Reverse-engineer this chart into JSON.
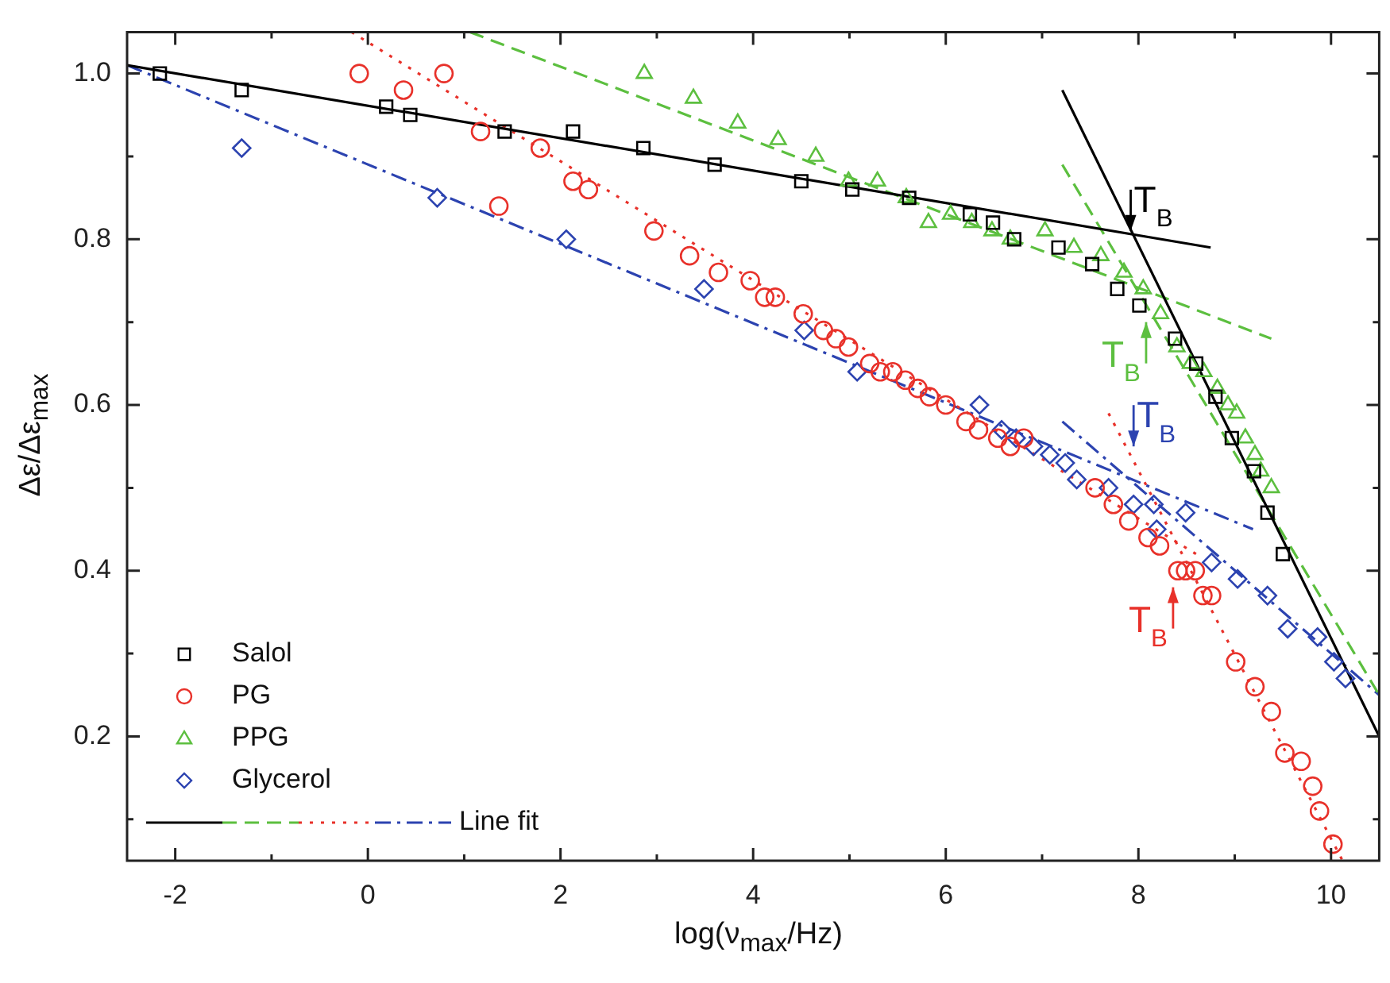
{
  "chart_data": {
    "type": "scatter",
    "xlabel": "log(ν$_{max}$/Hz)",
    "ylabel": "Δε/Δε$_{max}$",
    "xlim": [
      -2.5,
      10.5
    ],
    "ylim": [
      0.05,
      1.05
    ],
    "xticks": [
      -2,
      {
        "value": -1,
        "label": null
      },
      0,
      {
        "value": 1,
        "label": null
      },
      2,
      {
        "value": 3,
        "label": null
      },
      4,
      {
        "value": 5,
        "label": null
      },
      6,
      {
        "value": 7,
        "label": null
      },
      8,
      {
        "value": 9,
        "label": null
      },
      10
    ],
    "yticks": [
      {
        "value": 0.1,
        "label": null
      },
      0.2,
      {
        "value": 0.3,
        "label": null
      },
      0.4,
      {
        "value": 0.5,
        "label": null
      },
      0.6,
      {
        "value": 0.7,
        "label": null
      },
      0.8,
      {
        "value": 0.9,
        "label": null
      },
      {
        "value": 1,
        "label": "1.0"
      }
    ],
    "legend": "bottom left",
    "series": [
      {
        "name": "Salol",
        "color": "#000000",
        "marker": "square",
        "x": [
          -2.16,
          -1.31,
          0.19,
          0.44,
          1.42,
          2.13,
          2.86,
          3.6,
          4.5,
          5.03,
          5.62,
          6.25,
          6.49,
          6.71,
          7.17,
          7.52,
          7.78,
          8.01,
          8.38,
          8.6,
          8.8,
          8.97,
          9.2,
          9.34,
          9.5
        ],
        "values": [
          1.0,
          0.98,
          0.96,
          0.95,
          0.93,
          0.93,
          0.91,
          0.89,
          0.87,
          0.86,
          0.85,
          0.83,
          0.82,
          0.8,
          0.79,
          0.77,
          0.74,
          0.72,
          0.68,
          0.65,
          0.61,
          0.56,
          0.52,
          0.47,
          0.42
        ]
      },
      {
        "name": "PG",
        "color": "#e8312a",
        "marker": "circle",
        "x": [
          -0.09,
          0.37,
          0.79,
          1.17,
          1.36,
          1.79,
          2.13,
          2.29,
          2.97,
          3.34,
          3.64,
          3.97,
          4.12,
          4.23,
          4.52,
          4.73,
          4.86,
          4.99,
          5.21,
          5.32,
          5.45,
          5.58,
          5.71,
          5.83,
          6.0,
          6.21,
          6.34,
          6.54,
          6.67,
          6.81,
          7.55,
          7.74,
          7.9,
          8.1,
          8.22,
          8.41,
          8.49,
          8.59,
          8.67,
          8.76,
          9.01,
          9.21,
          9.38,
          9.52,
          9.69,
          9.81,
          9.88,
          10.02
        ],
        "values": [
          1.0,
          0.98,
          1.0,
          0.93,
          0.84,
          0.91,
          0.87,
          0.86,
          0.81,
          0.78,
          0.76,
          0.75,
          0.73,
          0.73,
          0.71,
          0.69,
          0.68,
          0.67,
          0.65,
          0.64,
          0.64,
          0.63,
          0.62,
          0.61,
          0.6,
          0.58,
          0.57,
          0.56,
          0.55,
          0.56,
          0.5,
          0.48,
          0.46,
          0.44,
          0.43,
          0.4,
          0.4,
          0.4,
          0.37,
          0.37,
          0.29,
          0.26,
          0.23,
          0.18,
          0.17,
          0.14,
          0.11,
          0.07
        ]
      },
      {
        "name": "PPG",
        "color": "#5cbf3f",
        "marker": "triangle",
        "x": [
          2.87,
          3.38,
          3.84,
          4.26,
          4.65,
          4.99,
          5.29,
          5.59,
          5.82,
          6.05,
          6.27,
          6.48,
          6.67,
          7.03,
          7.33,
          7.61,
          7.85,
          8.05,
          8.23,
          8.4,
          8.54,
          8.68,
          8.82,
          8.93,
          9.02,
          9.11,
          9.21,
          9.27,
          9.38
        ],
        "values": [
          1.0,
          0.97,
          0.94,
          0.92,
          0.9,
          0.87,
          0.87,
          0.85,
          0.82,
          0.83,
          0.82,
          0.81,
          0.8,
          0.81,
          0.79,
          0.78,
          0.76,
          0.74,
          0.71,
          0.67,
          0.65,
          0.64,
          0.62,
          0.6,
          0.59,
          0.56,
          0.54,
          0.52,
          0.5
        ]
      },
      {
        "name": "Glycerol",
        "color": "#2c43b0",
        "marker": "diamond",
        "x": [
          -1.31,
          0.72,
          2.06,
          3.49,
          4.53,
          5.08,
          6.35,
          6.58,
          6.73,
          6.91,
          7.08,
          7.24,
          7.36,
          7.69,
          7.95,
          8.16,
          8.19,
          8.49,
          8.76,
          9.03,
          9.34,
          9.55,
          9.86,
          10.03,
          10.15
        ],
        "values": [
          0.91,
          0.85,
          0.8,
          0.74,
          0.69,
          0.64,
          0.6,
          0.57,
          0.56,
          0.55,
          0.54,
          0.53,
          0.51,
          0.5,
          0.48,
          0.48,
          0.45,
          0.47,
          0.41,
          0.39,
          0.37,
          0.33,
          0.32,
          0.29,
          0.27
        ]
      },
      {
        "type": "line",
        "color": "#000000",
        "line_style": "solid",
        "marker": "none",
        "x": [
          -2.5,
          8.75
        ],
        "values": [
          1.01,
          0.79
        ]
      },
      {
        "type": "line",
        "color": "#000000",
        "line_style": "solid",
        "marker": "none",
        "x": [
          7.21,
          10.5
        ],
        "values": [
          0.98,
          0.2
        ]
      },
      {
        "type": "line",
        "color": "#5cbf3f",
        "line_style": "dashed",
        "marker": "none",
        "x": [
          1.06,
          9.38
        ],
        "values": [
          1.05,
          0.68
        ]
      },
      {
        "type": "line",
        "color": "#5cbf3f",
        "line_style": "dashed",
        "marker": "none",
        "x": [
          7.21,
          10.5
        ],
        "values": [
          0.89,
          0.25
        ]
      },
      {
        "type": "line",
        "color": "#e8312a",
        "line_style": "dotted",
        "marker": "none",
        "x": [
          -0.17,
          8.6
        ],
        "values": [
          1.05,
          0.42
        ]
      },
      {
        "type": "line",
        "color": "#e8312a",
        "line_style": "dotted",
        "marker": "none",
        "x": [
          7.69,
          10.12
        ],
        "values": [
          0.59,
          0.05
        ]
      },
      {
        "name": "Line fit",
        "type": "line",
        "color": "#2c43b0",
        "line_style": "dashdot",
        "marker": "none",
        "x": [
          -2.5,
          9.19
        ],
        "values": [
          1.01,
          0.45
        ]
      },
      {
        "type": "line",
        "color": "#2c43b0",
        "line_style": "dashdot",
        "marker": "none",
        "x": [
          7.21,
          10.5
        ],
        "values": [
          0.58,
          0.25
        ]
      }
    ],
    "annotations": [
      {
        "text": "T$_{B}$",
        "x": 7.92,
        "y": 0.81
      },
      {
        "text": "T$_{B}$",
        "x": 8.36,
        "y": 0.38
      },
      {
        "text": "T$_{B}$",
        "x": 8.08,
        "y": 0.7
      },
      {
        "text": "T$_{B}$",
        "x": 7.95,
        "y": 0.55
      }
    ]
  }
}
